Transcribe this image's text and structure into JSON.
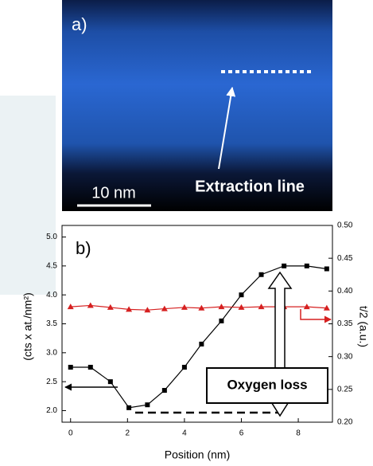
{
  "image_panel": {
    "label": "a)",
    "scale_bar": "10 nm",
    "annotation": "Extraction line"
  },
  "chart_data": {
    "type": "line",
    "panel_label": "b)",
    "annotation": "Oxygen loss",
    "x_label": "Position (nm)",
    "y_label": "(cts x at./nm²)",
    "y2_label": "t/2 (a.u.)",
    "x": [
      0,
      0.7,
      1.4,
      2.05,
      2.7,
      3.3,
      4,
      4.6,
      5.3,
      6,
      6.7,
      7.5,
      8.3,
      9
    ],
    "series": [
      {
        "color": "#000000",
        "marker": "square",
        "values": [
          2.75,
          2.75,
          2.5,
          2.05,
          2.1,
          2.35,
          2.75,
          3.15,
          3.55,
          4.0,
          4.35,
          4.5,
          4.5,
          4.45
        ]
      },
      {
        "color": "#d62020",
        "marker": "triangle",
        "axis": "y2",
        "values": [
          0.376,
          0.378,
          0.375,
          0.372,
          0.371,
          0.373,
          0.375,
          0.374,
          0.376,
          0.375,
          0.376,
          0.376,
          0.376,
          0.374
        ]
      }
    ],
    "xlim": [
      -0.3,
      9.2
    ],
    "xticks": [
      0,
      2,
      4,
      6,
      8
    ],
    "ylim": [
      1.8,
      5.2
    ],
    "yticks": [
      {
        "value": 2.0,
        "label": "2.0"
      },
      {
        "value": 2.5,
        "label": "2.5"
      },
      {
        "value": 3.0,
        "label": "3.0"
      },
      {
        "value": 3.5,
        "label": "3.5"
      },
      {
        "value": 4.0,
        "label": "4.0"
      },
      {
        "value": 4.5,
        "label": "4.5"
      },
      {
        "value": 5.0,
        "label": "5.0"
      }
    ],
    "y2lim": [
      0.2,
      0.5
    ],
    "y2ticks": [
      {
        "value": 0.2,
        "label": "0.20"
      },
      {
        "value": 0.25,
        "label": "0.25"
      },
      {
        "value": 0.3,
        "label": "0.30"
      },
      {
        "value": 0.35,
        "label": "0.35"
      },
      {
        "value": 0.4,
        "label": "0.40"
      },
      {
        "value": 0.45,
        "label": "0.45"
      },
      {
        "value": 0.5,
        "label": "0.50"
      }
    ]
  }
}
